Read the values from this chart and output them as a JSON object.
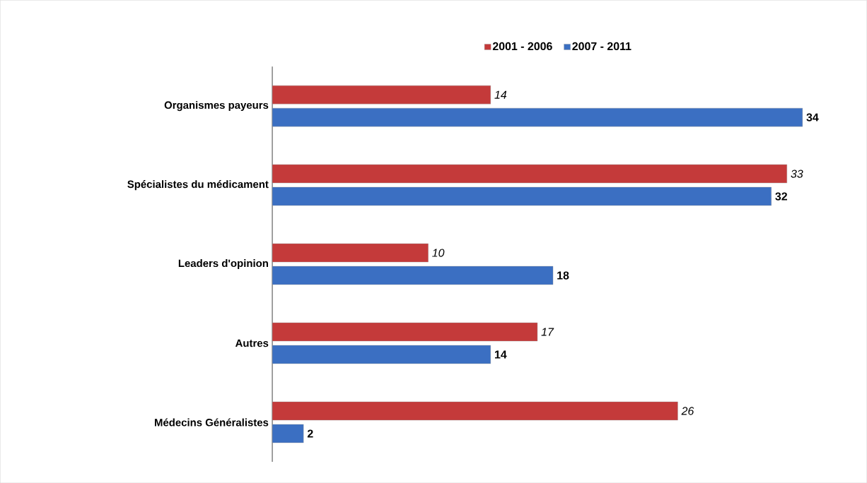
{
  "chart_data": {
    "type": "bar",
    "orientation": "horizontal",
    "categories": [
      "Organismes payeurs",
      "Spécialistes du médicament",
      "Leaders d'opinion",
      "Autres",
      "Médecins Généralistes"
    ],
    "series": [
      {
        "name": "2001 - 2006",
        "color": "#c43a3a",
        "values": [
          14,
          33,
          10,
          17,
          26
        ]
      },
      {
        "name": "2007 - 2011",
        "color": "#3b6fc2",
        "values": [
          34,
          32,
          18,
          14,
          2
        ]
      }
    ],
    "data_labels": true,
    "legend": "top"
  }
}
